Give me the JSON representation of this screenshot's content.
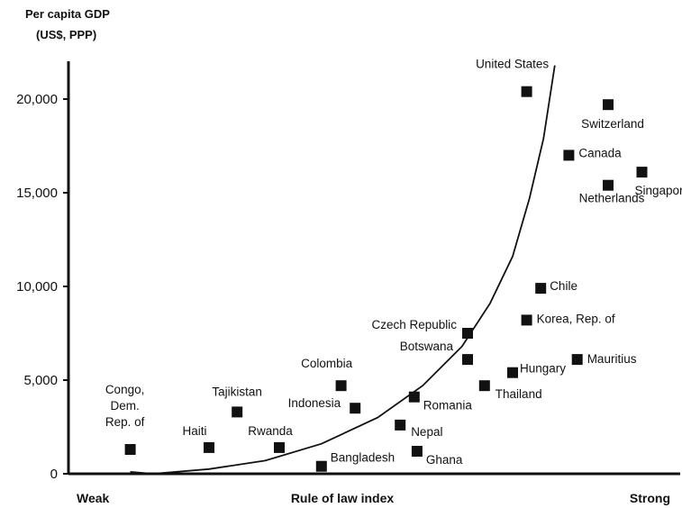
{
  "chart_data": {
    "type": "scatter",
    "title": "",
    "ylabel_lines": [
      "Per capita GDP",
      "(US$, PPP)"
    ],
    "xlabel": "Rule of law index",
    "x_labels": {
      "left": "Weak",
      "right": "Strong"
    },
    "ylim": [
      0,
      20000
    ],
    "xlim": [
      0,
      100
    ],
    "yticks": [
      {
        "value": 0,
        "label": "0"
      },
      {
        "value": 5000,
        "label": "5,000"
      },
      {
        "value": 10000,
        "label": "10,000"
      },
      {
        "value": 15000,
        "label": "15,000"
      },
      {
        "value": 20000,
        "label": "20,000"
      }
    ],
    "grid": false,
    "legend": "none",
    "marker_color": "#111111",
    "points": [
      {
        "name_lines": [
          "Congo,",
          "Dem.",
          "Rep. of"
        ],
        "x": 11,
        "y": 1300
      },
      {
        "name_lines": [
          "Haiti"
        ],
        "x": 25,
        "y": 1400
      },
      {
        "name_lines": [
          "Tajikistan"
        ],
        "x": 30,
        "y": 3300
      },
      {
        "name_lines": [
          "Rwanda"
        ],
        "x": 37.5,
        "y": 1400
      },
      {
        "name_lines": [
          "Colombia"
        ],
        "x": 48.5,
        "y": 4700
      },
      {
        "name_lines": [
          "Indonesia"
        ],
        "x": 51,
        "y": 3500
      },
      {
        "name_lines": [
          "Bangladesh"
        ],
        "x": 45,
        "y": 400
      },
      {
        "name_lines": [
          "Nepal"
        ],
        "x": 59,
        "y": 2600
      },
      {
        "name_lines": [
          "Ghana"
        ],
        "x": 62,
        "y": 1200
      },
      {
        "name_lines": [
          "Romania"
        ],
        "x": 61.5,
        "y": 4100
      },
      {
        "name_lines": [
          "Botswana"
        ],
        "x": 71,
        "y": 6100
      },
      {
        "name_lines": [
          "Czech Republic"
        ],
        "x": 71,
        "y": 7500
      },
      {
        "name_lines": [
          "Thailand"
        ],
        "x": 74,
        "y": 4700
      },
      {
        "name_lines": [
          "Hungary"
        ],
        "x": 79,
        "y": 5400
      },
      {
        "name_lines": [
          "Korea, Rep. of"
        ],
        "x": 81.5,
        "y": 8200
      },
      {
        "name_lines": [
          "Chile"
        ],
        "x": 84,
        "y": 9900
      },
      {
        "name_lines": [
          "Mauritius"
        ],
        "x": 90.5,
        "y": 6100
      },
      {
        "name_lines": [
          "United States"
        ],
        "x": 81.5,
        "y": 20400
      },
      {
        "name_lines": [
          "Canada"
        ],
        "x": 89,
        "y": 17000
      },
      {
        "name_lines": [
          "Switzerland"
        ],
        "x": 96,
        "y": 19700
      },
      {
        "name_lines": [
          "Netherlands"
        ],
        "x": 96,
        "y": 15400
      },
      {
        "name_lines": [
          "Singapore"
        ],
        "x": 102,
        "y": 16100
      }
    ],
    "trend_curve": [
      {
        "x": 11,
        "y": 100
      },
      {
        "x": 15,
        "y": 0
      },
      {
        "x": 25,
        "y": 250
      },
      {
        "x": 35,
        "y": 700
      },
      {
        "x": 45,
        "y": 1600
      },
      {
        "x": 55,
        "y": 3000
      },
      {
        "x": 63,
        "y": 4700
      },
      {
        "x": 70,
        "y": 6800
      },
      {
        "x": 75,
        "y": 9100
      },
      {
        "x": 79,
        "y": 11600
      },
      {
        "x": 82,
        "y": 14700
      },
      {
        "x": 84.5,
        "y": 17900
      },
      {
        "x": 86.5,
        "y": 21800
      }
    ]
  }
}
